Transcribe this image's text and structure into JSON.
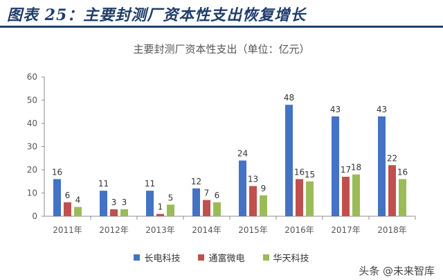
{
  "header": {
    "figure_label": "图表 25：主要封测厂资本性支出恢复增长"
  },
  "watermark": {
    "text": "头条 @未来智库"
  },
  "colors": {
    "series_1": "#4472c4",
    "series_2": "#c0504d",
    "series_3": "#9bbb59",
    "header_rule": "#1f3d6b"
  },
  "chart_data": {
    "type": "bar",
    "title": "主要封测厂资本性支出（单位：亿元）",
    "xlabel": "",
    "ylabel": "",
    "ylim": [
      0,
      60
    ],
    "yticks": [
      "0",
      "10",
      "20",
      "30",
      "40",
      "50",
      "60"
    ],
    "grid": false,
    "legend": "bottom",
    "categories": [
      "2011年",
      "2012年",
      "2013年",
      "2014年",
      "2015年",
      "2016年",
      "2017年",
      "2018年"
    ],
    "series": [
      {
        "name": "长电科技",
        "values": [
          16,
          11,
          11,
          12,
          24,
          48,
          43,
          43
        ],
        "labels": [
          "16",
          "11",
          "11",
          "12",
          "24",
          "48",
          "43",
          "43"
        ]
      },
      {
        "name": "通富微电",
        "values": [
          6,
          3,
          1,
          7,
          13,
          16,
          17,
          22
        ],
        "labels": [
          "6",
          "3",
          "1",
          "7",
          "13",
          "16",
          "17",
          "22"
        ]
      },
      {
        "name": "华天科技",
        "values": [
          4,
          3,
          5,
          6,
          9,
          15,
          18,
          16
        ],
        "labels": [
          "4",
          "3",
          "5",
          "6",
          "9",
          "15",
          "18",
          "16"
        ]
      }
    ]
  }
}
